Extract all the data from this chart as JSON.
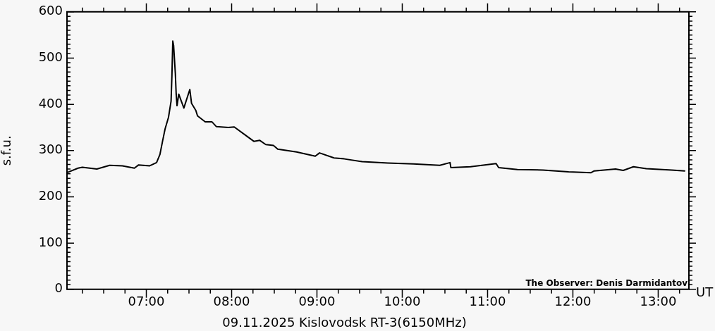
{
  "chart_data": {
    "type": "line",
    "title": "09.11.2025 Kislovodsk RT-3(6150MHz)",
    "xlabel": "UT",
    "ylabel": "s.f.u.",
    "annotations": [
      "The Observer: Denis Darmidantov"
    ],
    "x": [
      6.08,
      6.2,
      6.25,
      6.42,
      6.57,
      6.72,
      6.86,
      6.91,
      7.04,
      7.12,
      7.16,
      7.19,
      7.22,
      7.26,
      7.29,
      7.3,
      7.31,
      7.32,
      7.34,
      7.35,
      7.36,
      7.38,
      7.41,
      7.44,
      7.48,
      7.51,
      7.53,
      7.58,
      7.6,
      7.69,
      7.77,
      7.82,
      7.96,
      8.03,
      8.15,
      8.26,
      8.33,
      8.4,
      8.49,
      8.54,
      8.76,
      8.98,
      9.03,
      9.2,
      9.32,
      9.53,
      9.83,
      10.13,
      10.44,
      10.56,
      10.57,
      10.8,
      11.1,
      11.13,
      11.35,
      11.65,
      11.95,
      12.21,
      12.25,
      12.5,
      12.59,
      12.71,
      12.86,
      13.16,
      13.31
    ],
    "series": [
      {
        "color": "#000000",
        "values": [
          253,
          262,
          264,
          260,
          268,
          267,
          262,
          269,
          267,
          274,
          292,
          320,
          347,
          372,
          407,
          462,
          537,
          527,
          467,
          422,
          397,
          422,
          407,
          392,
          415,
          432,
          402,
          387,
          375,
          362,
          362,
          352,
          350,
          351,
          335,
          320,
          322,
          313,
          311,
          303,
          297,
          288,
          295,
          284,
          282,
          276,
          273,
          271,
          268,
          274,
          263,
          265,
          272,
          263,
          259,
          258,
          254,
          252,
          256,
          260,
          257,
          265,
          261,
          258,
          256
        ]
      }
    ],
    "xlim": [
      6.07,
      13.36
    ],
    "xticks": [
      {
        "value": 6.25,
        "label": null
      },
      {
        "value": 6.5,
        "label": null
      },
      {
        "value": 6.75,
        "label": null
      },
      {
        "value": 7,
        "label": "07:00"
      },
      {
        "value": 7.25,
        "label": null
      },
      {
        "value": 7.5,
        "label": null
      },
      {
        "value": 7.75,
        "label": null
      },
      {
        "value": 8,
        "label": "08:00"
      },
      {
        "value": 8.25,
        "label": null
      },
      {
        "value": 8.5,
        "label": null
      },
      {
        "value": 8.75,
        "label": null
      },
      {
        "value": 9,
        "label": "09:00"
      },
      {
        "value": 9.25,
        "label": null
      },
      {
        "value": 9.5,
        "label": null
      },
      {
        "value": 9.75,
        "label": null
      },
      {
        "value": 10,
        "label": "10:00"
      },
      {
        "value": 10.25,
        "label": null
      },
      {
        "value": 10.5,
        "label": null
      },
      {
        "value": 10.75,
        "label": null
      },
      {
        "value": 11,
        "label": "11:00"
      },
      {
        "value": 11.25,
        "label": null
      },
      {
        "value": 11.5,
        "label": null
      },
      {
        "value": 11.75,
        "label": null
      },
      {
        "value": 12,
        "label": "12:00"
      },
      {
        "value": 12.25,
        "label": null
      },
      {
        "value": 12.5,
        "label": null
      },
      {
        "value": 12.75,
        "label": null
      },
      {
        "value": 13,
        "label": "13:00"
      },
      {
        "value": 13.25,
        "label": null
      }
    ],
    "ylim": [
      0,
      600
    ],
    "yticks": [
      0,
      {
        "value": 10,
        "label": null
      },
      {
        "value": 20,
        "label": null
      },
      {
        "value": 30,
        "label": null
      },
      {
        "value": 40,
        "label": null
      },
      {
        "value": 50,
        "label": null
      },
      {
        "value": 60,
        "label": null
      },
      {
        "value": 70,
        "label": null
      },
      {
        "value": 80,
        "label": null
      },
      {
        "value": 90,
        "label": null
      },
      100,
      {
        "value": 110,
        "label": null
      },
      {
        "value": 120,
        "label": null
      },
      {
        "value": 130,
        "label": null
      },
      {
        "value": 140,
        "label": null
      },
      {
        "value": 150,
        "label": null
      },
      {
        "value": 160,
        "label": null
      },
      {
        "value": 170,
        "label": null
      },
      {
        "value": 180,
        "label": null
      },
      {
        "value": 190,
        "label": null
      },
      200,
      {
        "value": 210,
        "label": null
      },
      {
        "value": 220,
        "label": null
      },
      {
        "value": 230,
        "label": null
      },
      {
        "value": 240,
        "label": null
      },
      {
        "value": 250,
        "label": null
      },
      {
        "value": 260,
        "label": null
      },
      {
        "value": 270,
        "label": null
      },
      {
        "value": 280,
        "label": null
      },
      {
        "value": 290,
        "label": null
      },
      300,
      {
        "value": 310,
        "label": null
      },
      {
        "value": 320,
        "label": null
      },
      {
        "value": 330,
        "label": null
      },
      {
        "value": 340,
        "label": null
      },
      {
        "value": 350,
        "label": null
      },
      {
        "value": 360,
        "label": null
      },
      {
        "value": 370,
        "label": null
      },
      {
        "value": 380,
        "label": null
      },
      {
        "value": 390,
        "label": null
      },
      400,
      {
        "value": 410,
        "label": null
      },
      {
        "value": 420,
        "label": null
      },
      {
        "value": 430,
        "label": null
      },
      {
        "value": 440,
        "label": null
      },
      {
        "value": 450,
        "label": null
      },
      {
        "value": 460,
        "label": null
      },
      {
        "value": 470,
        "label": null
      },
      {
        "value": 480,
        "label": null
      },
      {
        "value": 490,
        "label": null
      },
      500,
      {
        "value": 510,
        "label": null
      },
      {
        "value": 520,
        "label": null
      },
      {
        "value": 530,
        "label": null
      },
      {
        "value": 540,
        "label": null
      },
      {
        "value": 550,
        "label": null
      },
      {
        "value": 560,
        "label": null
      },
      {
        "value": 570,
        "label": null
      },
      {
        "value": 580,
        "label": null
      },
      {
        "value": 590,
        "label": null
      },
      600
    ],
    "grid": false,
    "legend": false,
    "marker": "none",
    "line_style": "solid"
  }
}
